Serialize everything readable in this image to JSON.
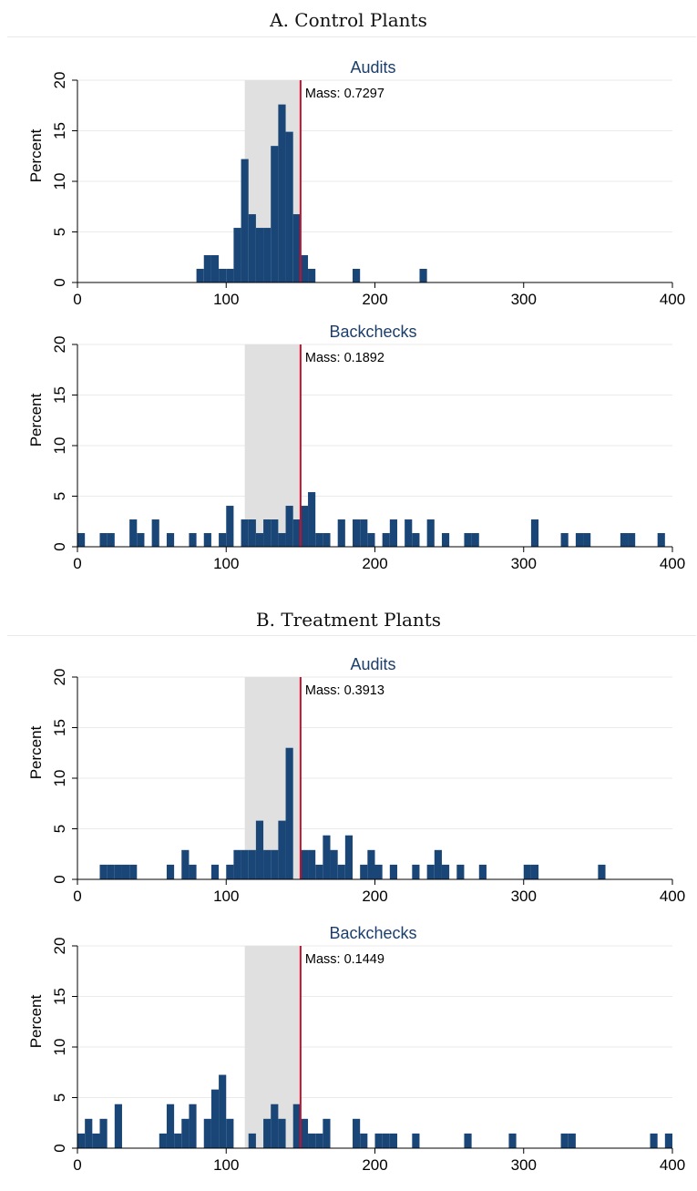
{
  "panels": [
    {
      "title": "A. Control Plants"
    },
    {
      "title": "B. Treatment Plants"
    }
  ],
  "colors": {
    "bar": "#1a4677",
    "threshold": "#c8102e",
    "shade": "#e0e0e0",
    "grid": "#eaeaea",
    "title": "#1c3e6b"
  },
  "chart_data": [
    {
      "type": "bar",
      "panel": "A. Control Plants",
      "title": "Audits",
      "xlabel": "",
      "ylabel": "Percent",
      "xlim": [
        0,
        400
      ],
      "ylim": [
        0,
        20
      ],
      "xticks": [
        0,
        100,
        200,
        300,
        400
      ],
      "yticks": [
        0,
        5,
        10,
        15,
        20
      ],
      "grid": "horizontal",
      "bin_width": 5,
      "shaded_range": [
        112.5,
        150
      ],
      "threshold": 150,
      "annotation": "Mass: 0.7297",
      "bins": [
        [
          80,
          1.35
        ],
        [
          85,
          2.7
        ],
        [
          90,
          2.7
        ],
        [
          95,
          1.35
        ],
        [
          100,
          1.35
        ],
        [
          105,
          5.4
        ],
        [
          110,
          12.2
        ],
        [
          115,
          6.75
        ],
        [
          120,
          5.4
        ],
        [
          125,
          5.4
        ],
        [
          130,
          13.5
        ],
        [
          135,
          17.6
        ],
        [
          140,
          14.9
        ],
        [
          145,
          6.75
        ],
        [
          150,
          2.7
        ],
        [
          155,
          1.35
        ],
        [
          185,
          1.35
        ],
        [
          230,
          1.35
        ]
      ]
    },
    {
      "type": "bar",
      "panel": "A. Control Plants",
      "title": "Backchecks",
      "xlabel": "",
      "ylabel": "Percent",
      "xlim": [
        0,
        400
      ],
      "ylim": [
        0,
        20
      ],
      "xticks": [
        0,
        100,
        200,
        300,
        400
      ],
      "yticks": [
        0,
        5,
        10,
        15,
        20
      ],
      "grid": "horizontal",
      "bin_width": 5,
      "shaded_range": [
        112.5,
        150
      ],
      "threshold": 150,
      "annotation": "Mass: 0.1892",
      "bins": [
        [
          0,
          1.35
        ],
        [
          15,
          1.35
        ],
        [
          20,
          1.35
        ],
        [
          35,
          2.7
        ],
        [
          40,
          1.35
        ],
        [
          50,
          2.7
        ],
        [
          60,
          1.35
        ],
        [
          75,
          1.35
        ],
        [
          85,
          1.35
        ],
        [
          95,
          1.35
        ],
        [
          100,
          4.05
        ],
        [
          110,
          2.7
        ],
        [
          115,
          2.7
        ],
        [
          120,
          1.35
        ],
        [
          125,
          2.7
        ],
        [
          130,
          2.7
        ],
        [
          135,
          1.35
        ],
        [
          140,
          4.05
        ],
        [
          145,
          2.7
        ],
        [
          150,
          4.05
        ],
        [
          155,
          5.4
        ],
        [
          160,
          1.35
        ],
        [
          165,
          1.35
        ],
        [
          175,
          2.7
        ],
        [
          185,
          2.7
        ],
        [
          190,
          2.7
        ],
        [
          195,
          1.35
        ],
        [
          205,
          1.35
        ],
        [
          210,
          2.7
        ],
        [
          220,
          2.7
        ],
        [
          225,
          1.35
        ],
        [
          235,
          2.7
        ],
        [
          245,
          1.35
        ],
        [
          260,
          1.35
        ],
        [
          265,
          1.35
        ],
        [
          305,
          2.7
        ],
        [
          325,
          1.35
        ],
        [
          335,
          1.35
        ],
        [
          340,
          1.35
        ],
        [
          365,
          1.35
        ],
        [
          370,
          1.35
        ],
        [
          390,
          1.35
        ]
      ]
    },
    {
      "type": "bar",
      "panel": "B. Treatment Plants",
      "title": "Audits",
      "xlabel": "",
      "ylabel": "Percent",
      "xlim": [
        0,
        400
      ],
      "ylim": [
        0,
        20
      ],
      "xticks": [
        0,
        100,
        200,
        300,
        400
      ],
      "yticks": [
        0,
        5,
        10,
        15,
        20
      ],
      "grid": "horizontal",
      "bin_width": 5,
      "shaded_range": [
        112.5,
        150
      ],
      "threshold": 150,
      "annotation": "Mass: 0.3913",
      "bins": [
        [
          15,
          1.45
        ],
        [
          20,
          1.45
        ],
        [
          25,
          1.45
        ],
        [
          30,
          1.45
        ],
        [
          35,
          1.45
        ],
        [
          60,
          1.45
        ],
        [
          70,
          2.9
        ],
        [
          75,
          1.45
        ],
        [
          90,
          1.45
        ],
        [
          100,
          1.45
        ],
        [
          105,
          2.9
        ],
        [
          110,
          2.9
        ],
        [
          115,
          2.9
        ],
        [
          120,
          5.8
        ],
        [
          125,
          2.9
        ],
        [
          130,
          2.9
        ],
        [
          135,
          5.8
        ],
        [
          140,
          13.0
        ],
        [
          150,
          2.9
        ],
        [
          155,
          2.9
        ],
        [
          160,
          1.45
        ],
        [
          165,
          4.35
        ],
        [
          170,
          2.9
        ],
        [
          175,
          1.45
        ],
        [
          180,
          4.35
        ],
        [
          190,
          1.45
        ],
        [
          195,
          2.9
        ],
        [
          200,
          1.45
        ],
        [
          210,
          1.45
        ],
        [
          225,
          1.45
        ],
        [
          235,
          1.45
        ],
        [
          240,
          2.9
        ],
        [
          245,
          1.45
        ],
        [
          255,
          1.45
        ],
        [
          270,
          1.45
        ],
        [
          300,
          1.45
        ],
        [
          305,
          1.45
        ],
        [
          350,
          1.45
        ]
      ]
    },
    {
      "type": "bar",
      "panel": "B. Treatment Plants",
      "title": "Backchecks",
      "xlabel": "",
      "ylabel": "Percent",
      "xlim": [
        0,
        400
      ],
      "ylim": [
        0,
        20
      ],
      "xticks": [
        0,
        100,
        200,
        300,
        400
      ],
      "yticks": [
        0,
        5,
        10,
        15,
        20
      ],
      "grid": "horizontal",
      "bin_width": 5,
      "shaded_range": [
        112.5,
        150
      ],
      "threshold": 150,
      "annotation": "Mass: 0.1449",
      "bins": [
        [
          0,
          1.45
        ],
        [
          5,
          2.9
        ],
        [
          10,
          1.45
        ],
        [
          15,
          2.9
        ],
        [
          25,
          4.35
        ],
        [
          55,
          1.45
        ],
        [
          60,
          4.35
        ],
        [
          65,
          1.45
        ],
        [
          70,
          2.9
        ],
        [
          75,
          4.35
        ],
        [
          85,
          2.9
        ],
        [
          90,
          5.8
        ],
        [
          95,
          7.25
        ],
        [
          100,
          2.9
        ],
        [
          115,
          1.45
        ],
        [
          125,
          2.9
        ],
        [
          130,
          4.35
        ],
        [
          135,
          2.9
        ],
        [
          145,
          4.35
        ],
        [
          150,
          2.9
        ],
        [
          155,
          1.45
        ],
        [
          160,
          1.45
        ],
        [
          165,
          2.9
        ],
        [
          185,
          2.9
        ],
        [
          190,
          1.45
        ],
        [
          200,
          1.45
        ],
        [
          205,
          1.45
        ],
        [
          210,
          1.45
        ],
        [
          225,
          1.45
        ],
        [
          260,
          1.45
        ],
        [
          290,
          1.45
        ],
        [
          325,
          1.45
        ],
        [
          330,
          1.45
        ],
        [
          385,
          1.45
        ],
        [
          395,
          1.45
        ]
      ]
    }
  ]
}
